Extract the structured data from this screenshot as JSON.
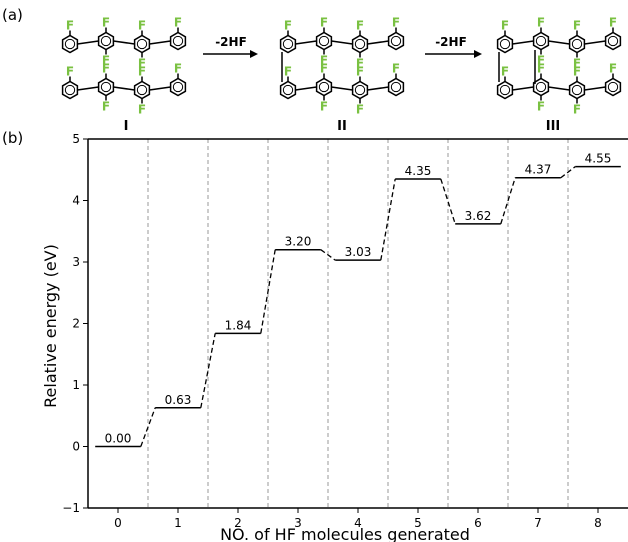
{
  "panels": {
    "a_label": "(a)",
    "b_label": "(b)"
  },
  "scheme": {
    "f_atom": "F",
    "f_color": "#7ac142",
    "arrows": [
      {
        "label": "-2HF"
      },
      {
        "label": "-2HF"
      }
    ],
    "structures": [
      {
        "label": "I"
      },
      {
        "label": "II"
      },
      {
        "label": "III"
      }
    ]
  },
  "chart_data": {
    "type": "line",
    "style": "energy-level step diagram",
    "x": [
      0,
      1,
      2,
      3,
      4,
      5,
      6,
      7,
      8
    ],
    "values": [
      0.0,
      0.63,
      1.84,
      3.2,
      3.03,
      4.35,
      3.62,
      4.37,
      4.55
    ],
    "data_labels": [
      "0.00",
      "0.63",
      "1.84",
      "3.20",
      "3.03",
      "4.35",
      "3.62",
      "4.37",
      "4.55"
    ],
    "xlabel": "NO. of HF molecules generated",
    "ylabel": "Relative energy (eV)",
    "xticks": [
      "0",
      "1",
      "2",
      "3",
      "4",
      "5",
      "6",
      "7",
      "8"
    ],
    "yticks": [
      "−1",
      "0",
      "1",
      "2",
      "3",
      "4",
      "5"
    ],
    "ylim": [
      -1,
      5
    ],
    "xlim": [
      -0.5,
      8.5
    ],
    "grid": "dashed vertical separators",
    "legend": "none"
  }
}
